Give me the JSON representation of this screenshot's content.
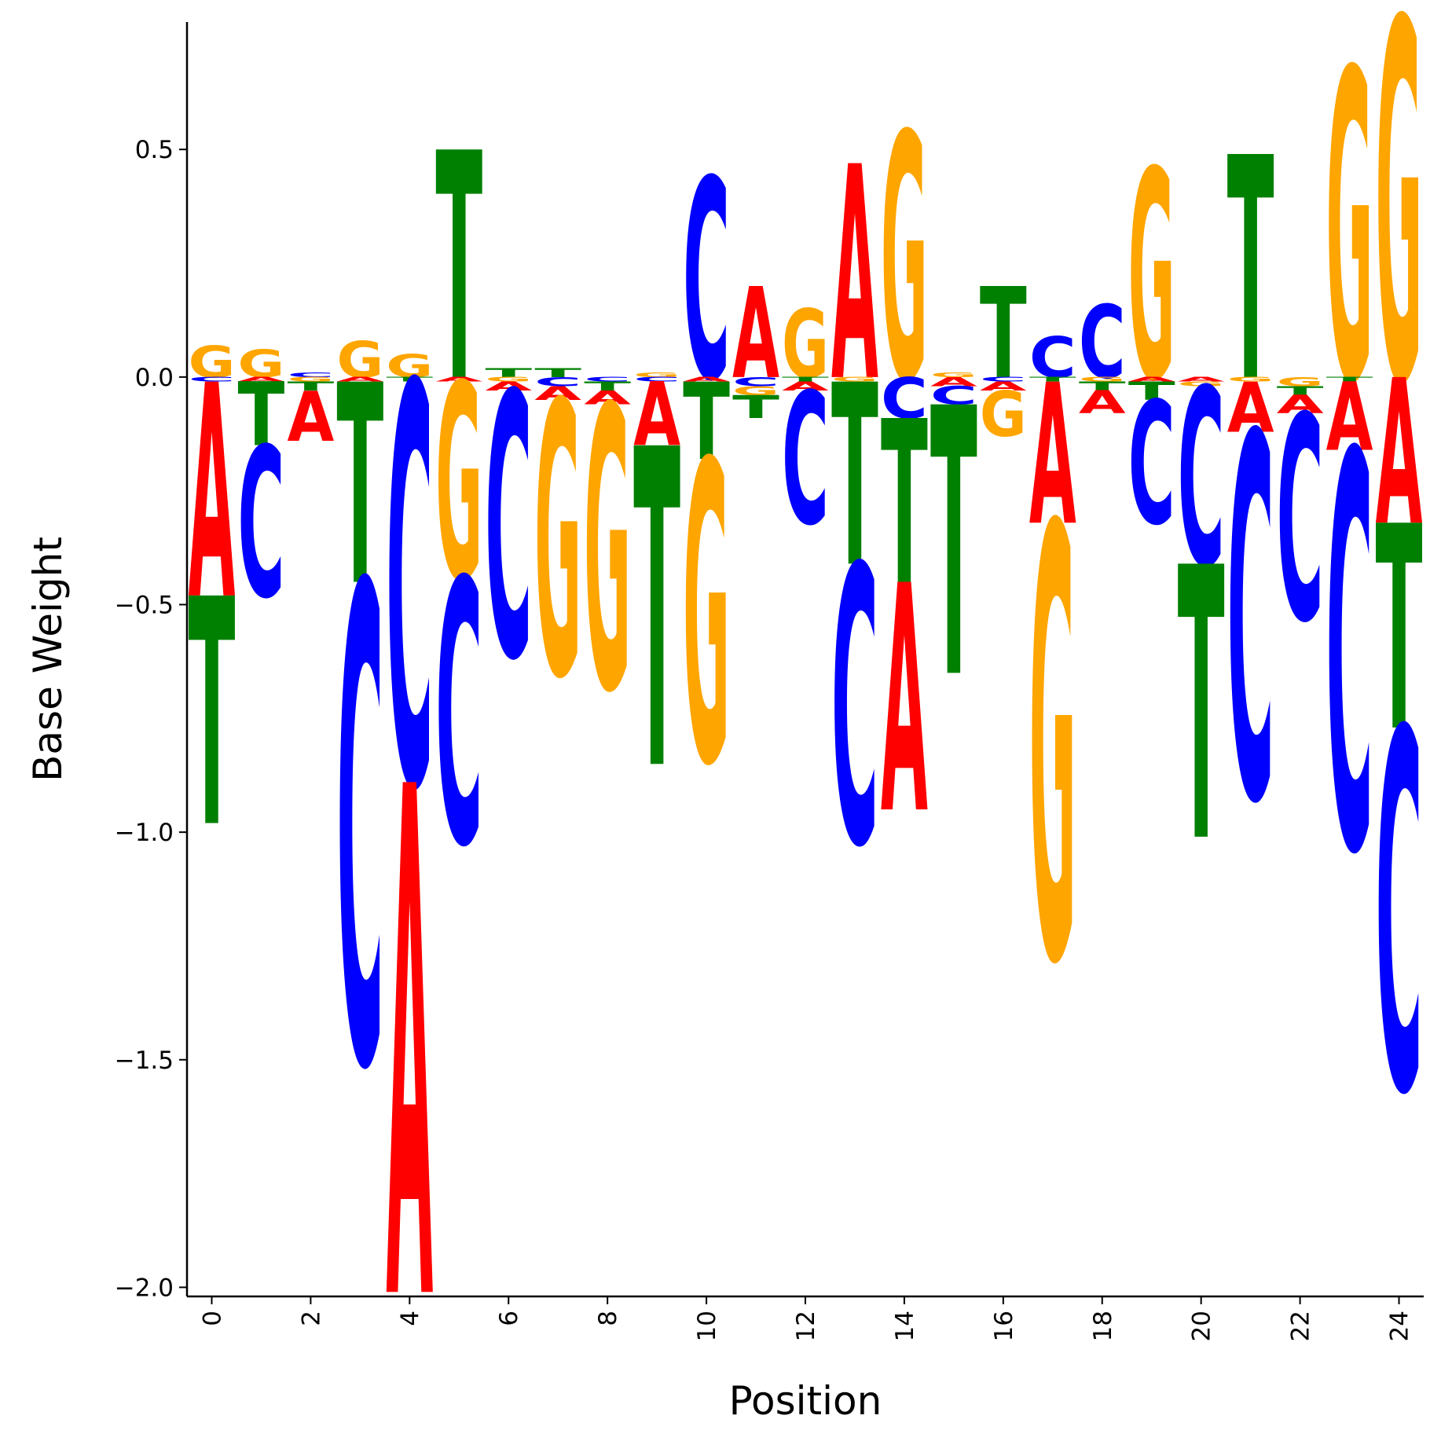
{
  "chart_data": {
    "type": "logo",
    "title": "",
    "xlabel": "Position",
    "ylabel": "Base Weight",
    "xlim": [
      -0.5,
      24.5
    ],
    "ylim": [
      -2.02,
      0.78
    ],
    "yticks": [
      0.5,
      0.0,
      -0.5,
      -1.0,
      -1.5,
      -2.0
    ],
    "ytick_labels": [
      "0.5",
      "0.0",
      "−0.5",
      "−1.0",
      "−1.5",
      "−2.0"
    ],
    "xticks": [
      0,
      2,
      4,
      6,
      8,
      10,
      12,
      14,
      16,
      18,
      20,
      22,
      24
    ],
    "xtick_labels": [
      "0",
      "2",
      "4",
      "6",
      "8",
      "10",
      "12",
      "14",
      "16",
      "18",
      "20",
      "22",
      "24"
    ],
    "grid": false,
    "colors": {
      "A": "#ff0000",
      "C": "#0000ff",
      "G": "#ffa500",
      "T": "#008000"
    },
    "positions": [
      {
        "pos": 0,
        "A": -0.47,
        "C": -0.01,
        "G": 0.07,
        "T": -0.5
      },
      {
        "pos": 1,
        "A": -0.01,
        "C": -0.33,
        "G": 0.06,
        "T": -0.14
      },
      {
        "pos": 2,
        "A": -0.11,
        "C": 0.01,
        "G": -0.01,
        "T": -0.02
      },
      {
        "pos": 3,
        "A": -0.01,
        "C": -1.05,
        "G": 0.08,
        "T": -0.44
      },
      {
        "pos": 4,
        "A": -1.12,
        "C": -0.88,
        "G": 0.05,
        "T": -0.01
      },
      {
        "pos": 5,
        "A": -0.01,
        "C": -0.58,
        "G": -0.43,
        "T": 0.5
      },
      {
        "pos": 6,
        "A": -0.02,
        "C": -0.58,
        "G": -0.01,
        "T": 0.02
      },
      {
        "pos": 7,
        "A": -0.03,
        "C": -0.02,
        "G": -0.6,
        "T": 0.02
      },
      {
        "pos": 8,
        "A": -0.03,
        "C": -0.01,
        "G": -0.62,
        "T": -0.02
      },
      {
        "pos": 9,
        "A": -0.14,
        "C": -0.01,
        "G": 0.01,
        "T": -0.7
      },
      {
        "pos": 10,
        "A": -0.01,
        "C": 0.44,
        "G": -0.66,
        "T": -0.17
      },
      {
        "pos": 11,
        "A": 0.2,
        "C": -0.02,
        "G": -0.02,
        "T": -0.05
      },
      {
        "pos": 12,
        "A": -0.02,
        "C": -0.29,
        "G": 0.15,
        "T": -0.01
      },
      {
        "pos": 13,
        "A": 0.47,
        "C": -0.61,
        "G": -0.01,
        "T": -0.4
      },
      {
        "pos": 14,
        "A": -0.5,
        "C": -0.09,
        "G": 0.54,
        "T": -0.36
      },
      {
        "pos": 15,
        "A": -0.02,
        "C": -0.04,
        "G": 0.01,
        "T": -0.59
      },
      {
        "pos": 16,
        "A": -0.02,
        "C": -0.01,
        "G": -0.1,
        "T": 0.2
      },
      {
        "pos": 17,
        "A": -0.31,
        "C": 0.09,
        "G": -0.95,
        "T": -0.01
      },
      {
        "pos": 18,
        "A": -0.05,
        "C": 0.16,
        "G": -0.01,
        "T": -0.02
      },
      {
        "pos": 19,
        "A": -0.01,
        "C": -0.27,
        "G": 0.46,
        "T": -0.04
      },
      {
        "pos": 20,
        "A": -0.01,
        "C": -0.39,
        "G": -0.01,
        "T": -0.6
      },
      {
        "pos": 21,
        "A": -0.11,
        "C": -0.8,
        "G": -0.01,
        "T": 0.49
      },
      {
        "pos": 22,
        "A": -0.04,
        "C": -0.45,
        "G": -0.02,
        "T": -0.02
      },
      {
        "pos": 23,
        "A": -0.15,
        "C": -0.87,
        "G": 0.68,
        "T": -0.01
      },
      {
        "pos": 24,
        "A": -0.32,
        "C": -0.79,
        "G": 0.79,
        "T": -0.45
      }
    ]
  }
}
